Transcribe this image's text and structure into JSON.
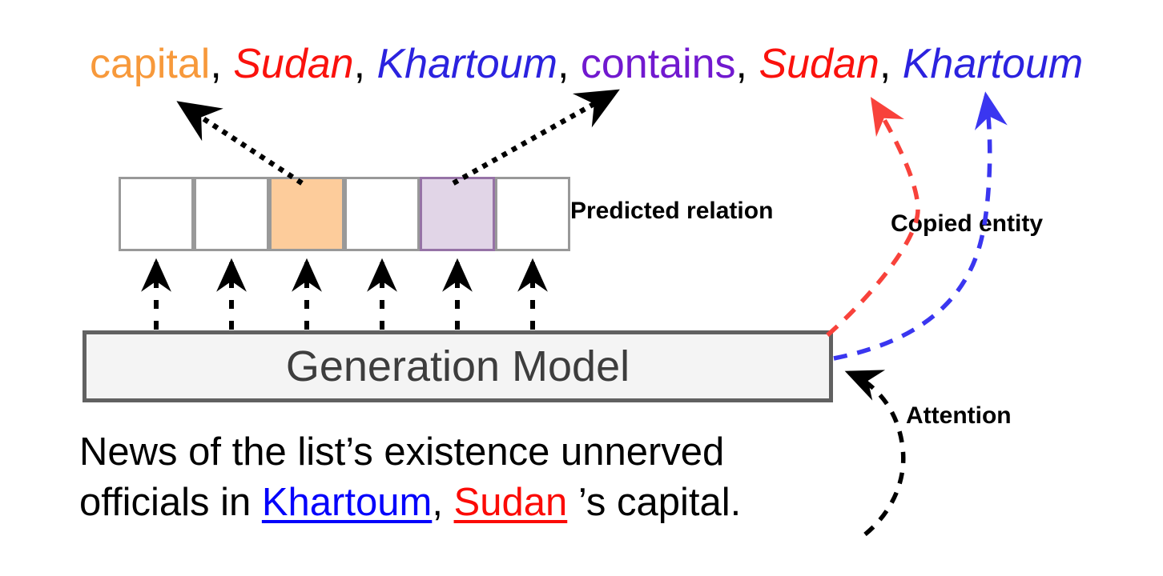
{
  "figure": {
    "description": "Generation model diagram: input sentence fed to a generation model which outputs a sequence of predicted relations and copied entities"
  },
  "sequence": {
    "separator": ",",
    "separator_color": "#000000",
    "tokens": [
      {
        "text": "capital",
        "color": "#F7993B",
        "italic": false
      },
      {
        "text": "Sudan",
        "color": "#FA120D",
        "italic": true
      },
      {
        "text": "Khartoum",
        "color": "#2B22DF",
        "italic": true
      },
      {
        "text": "contains",
        "color": "#7119CF",
        "italic": false
      },
      {
        "text": "Sudan",
        "color": "#FA120D",
        "italic": true
      },
      {
        "text": "Khartoum",
        "color": "#2B22DF",
        "italic": true
      }
    ]
  },
  "prediction_cells": [
    {
      "fill": "#FFFFFF",
      "border": "#999999"
    },
    {
      "fill": "#FFFFFF",
      "border": "#999999"
    },
    {
      "fill": "#FDCC9B",
      "border": "#999999"
    },
    {
      "fill": "#FFFFFF",
      "border": "#999999"
    },
    {
      "fill": "#E1D5E7",
      "border": "#9673A6"
    },
    {
      "fill": "#FFFFFF",
      "border": "#999999"
    }
  ],
  "labels": {
    "predicted_relation": "Predicted relation",
    "copied_entity": "Copied entity",
    "attention": "Attention"
  },
  "model": {
    "name": "Generation Model",
    "fill": "#F4F4F4",
    "border": "#616161",
    "text_color": "#3D3D3D"
  },
  "input_sentence": {
    "lines": [
      [
        {
          "text": "News of the list’s existence unnerved",
          "color": "#000000",
          "underline": false
        }
      ],
      [
        {
          "text": "officials in ",
          "color": "#000000",
          "underline": false
        },
        {
          "text": "Khartoum",
          "color": "#0503FB",
          "underline": true
        },
        {
          "text": ", ",
          "color": "#000000",
          "underline": false
        },
        {
          "text": "Sudan",
          "color": "#FB0B06",
          "underline": true
        },
        {
          "text": " ’s capital.",
          "color": "#000000",
          "underline": false
        }
      ]
    ]
  },
  "arrows": {
    "feed_color": "#000000",
    "relation_color": "#000000",
    "attention_color": "#000000",
    "copied_sudan_color": "#F8423B",
    "copied_khartoum_color": "#3A36F0"
  }
}
